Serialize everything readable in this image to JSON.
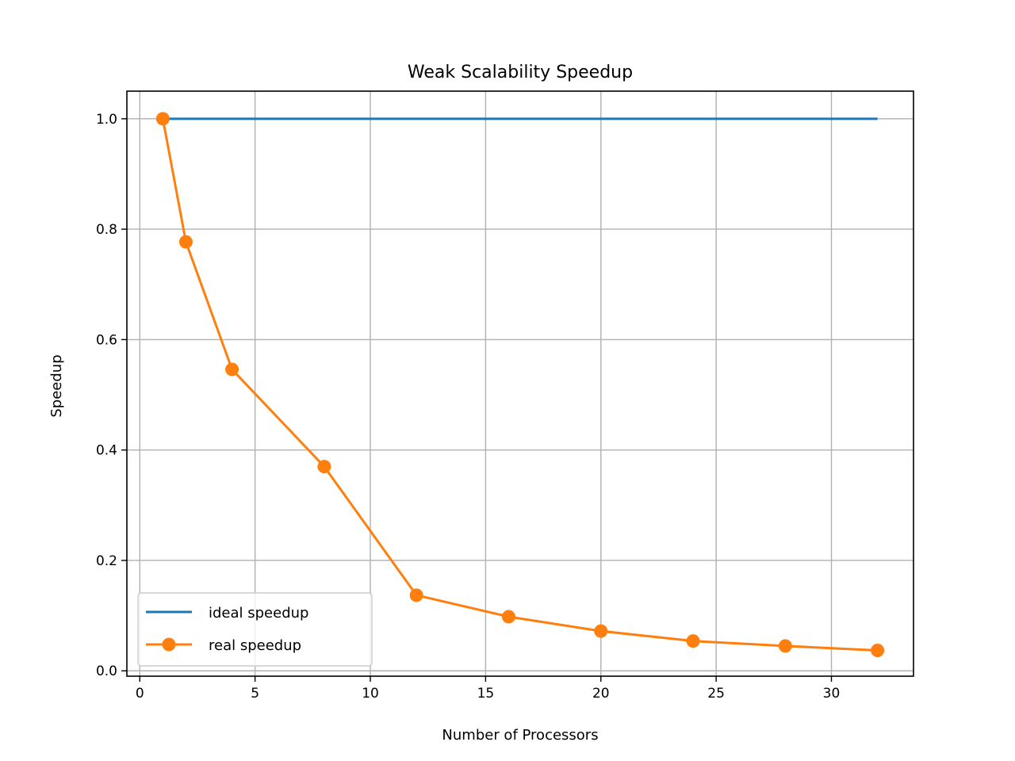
{
  "chart_data": {
    "type": "line",
    "title": "Weak Scalability Speedup",
    "xlabel": "Number of Processors",
    "ylabel": "Speedup",
    "xlim": [
      -0.56,
      33.56
    ],
    "ylim": [
      -0.0097,
      1.05
    ],
    "xticks": [
      0,
      5,
      10,
      15,
      20,
      25,
      30
    ],
    "xtick_labels": [
      "0",
      "5",
      "10",
      "15",
      "20",
      "25",
      "30"
    ],
    "yticks": [
      0.0,
      0.2,
      0.4,
      0.6,
      0.8,
      1.0
    ],
    "ytick_labels": [
      "0.0",
      "0.2",
      "0.4",
      "0.6",
      "0.8",
      "1.0"
    ],
    "grid": true,
    "legend_position": "lower-left",
    "series": [
      {
        "name": "ideal speedup",
        "color": "#1f77b4",
        "marker": "none",
        "x": [
          1,
          32
        ],
        "y": [
          1.0,
          1.0
        ]
      },
      {
        "name": "real speedup",
        "color": "#ff7f0e",
        "marker": "circle",
        "x": [
          1,
          2,
          4,
          8,
          12,
          16,
          20,
          24,
          28,
          32
        ],
        "y": [
          1.0,
          0.777,
          0.546,
          0.37,
          0.137,
          0.098,
          0.072,
          0.054,
          0.045,
          0.037
        ]
      }
    ]
  }
}
